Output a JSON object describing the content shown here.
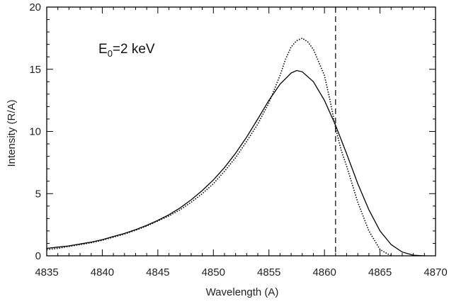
{
  "chart_data": {
    "type": "line",
    "title": "",
    "xlabel": "Wavelength (A)",
    "ylabel": "Intensity (R/A)",
    "xlim": [
      4835,
      4870
    ],
    "ylim": [
      0,
      20
    ],
    "x_ticks": [
      4835,
      4840,
      4845,
      4850,
      4855,
      4860,
      4865,
      4870
    ],
    "y_ticks": [
      0,
      5,
      10,
      15,
      20
    ],
    "annotation": {
      "base": "E",
      "sub": "0",
      "text": "=2 keV"
    },
    "reference_line": {
      "x": 4861,
      "style": "dashed"
    },
    "grid": false,
    "legend": "none",
    "colors": {
      "model": "#000000",
      "observed": "#000000"
    },
    "series": [
      {
        "style": "solid",
        "x": [
          4835,
          4836,
          4837,
          4838,
          4839,
          4840,
          4841,
          4842,
          4843,
          4844,
          4845,
          4846,
          4847,
          4848,
          4849,
          4850,
          4851,
          4852,
          4853,
          4854,
          4855,
          4856,
          4857,
          4857.5,
          4858,
          4859,
          4860,
          4861,
          4862,
          4863,
          4864,
          4865,
          4866,
          4867,
          4868,
          4869
        ],
        "values": [
          0.6,
          0.7,
          0.8,
          0.95,
          1.1,
          1.3,
          1.55,
          1.8,
          2.1,
          2.45,
          2.85,
          3.3,
          3.85,
          4.5,
          5.25,
          6.1,
          7.1,
          8.25,
          9.55,
          11.0,
          12.5,
          13.8,
          14.7,
          14.9,
          14.8,
          14.0,
          12.5,
          10.5,
          8.2,
          5.8,
          3.7,
          2.0,
          0.9,
          0.3,
          0.05,
          0.0
        ]
      },
      {
        "style": "dotted",
        "x": [
          4835,
          4836,
          4837,
          4838,
          4839,
          4840,
          4841,
          4842,
          4843,
          4844,
          4845,
          4846,
          4847,
          4848,
          4849,
          4850,
          4851,
          4852,
          4853,
          4854,
          4855,
          4856,
          4856.5,
          4857,
          4857.5,
          4858,
          4858.5,
          4859,
          4860,
          4860.5,
          4861,
          4861.5,
          4862,
          4863,
          4864,
          4865,
          4866
        ],
        "values": [
          0.5,
          0.6,
          0.75,
          0.9,
          1.05,
          1.25,
          1.5,
          1.75,
          2.05,
          2.4,
          2.8,
          3.2,
          3.7,
          4.3,
          5.0,
          5.8,
          6.8,
          7.9,
          9.2,
          10.6,
          12.3,
          14.5,
          15.8,
          16.8,
          17.3,
          17.5,
          17.2,
          16.6,
          14.5,
          12.5,
          10.3,
          8.5,
          7.2,
          4.3,
          2.0,
          0.5,
          0.0
        ]
      }
    ]
  }
}
